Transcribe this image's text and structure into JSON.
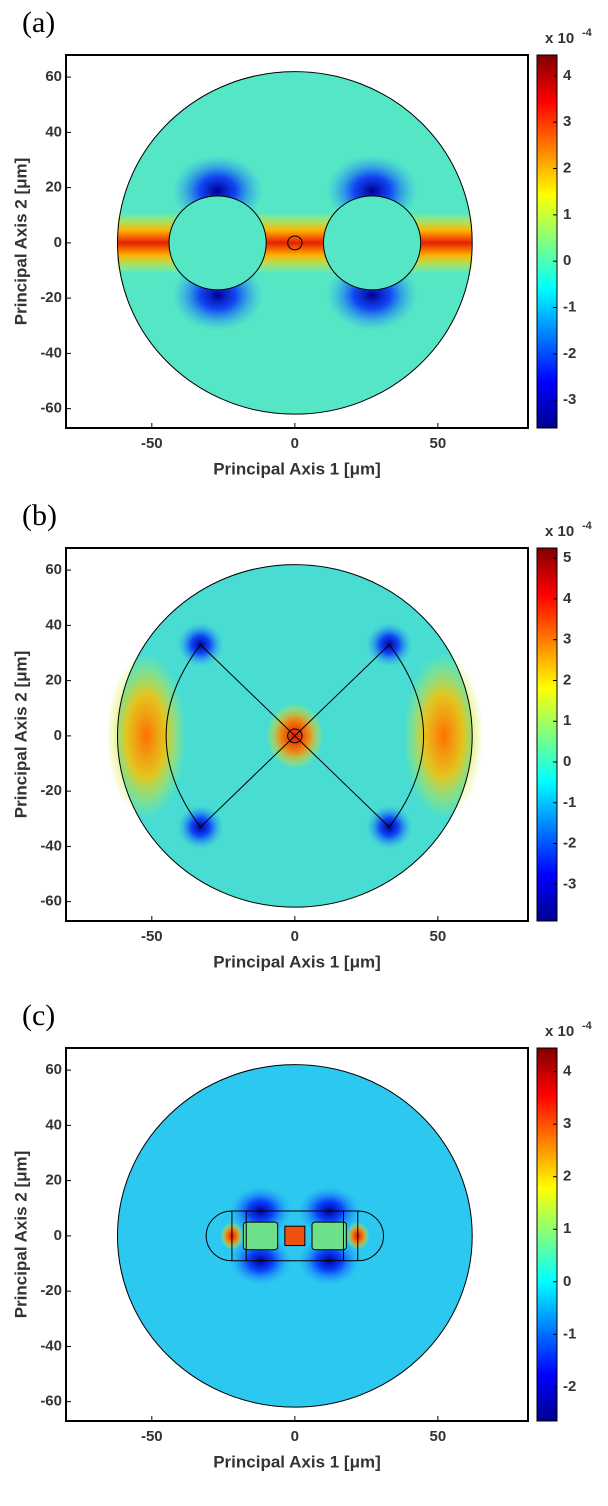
{
  "chart_data": [
    {
      "type": "heatmap",
      "panel_label": "(a)",
      "x_label": "Principal Axis 1 [μm]",
      "y_label": "Principal Axis 2 [μm]",
      "xlim": [
        -80,
        81.5
      ],
      "ylim": [
        -67,
        68
      ],
      "xticks": [
        -50,
        0,
        50
      ],
      "yticks": [
        60,
        40,
        20,
        0,
        -20,
        -40,
        -60
      ],
      "zlim": [
        -3.6,
        4.45
      ],
      "zticks": [
        4,
        3,
        2,
        1,
        0,
        -1,
        -2,
        -3
      ],
      "colorbar_label": "x 10",
      "colorbar_exponent": "-4"
    },
    {
      "type": "heatmap",
      "panel_label": "(b)",
      "x_label": "Principal Axis 1 [μm]",
      "y_label": "Principal Axis 2 [μm]",
      "xlim": [
        -80,
        81.5
      ],
      "ylim": [
        -67,
        68
      ],
      "xticks": [
        -50,
        0,
        50
      ],
      "yticks": [
        60,
        40,
        20,
        0,
        -20,
        -40,
        -60
      ],
      "zlim": [
        -3.9,
        5.25
      ],
      "zticks": [
        5,
        4,
        3,
        2,
        1,
        0,
        -1,
        -2,
        -3
      ],
      "colorbar_label": "x 10",
      "colorbar_exponent": "-4"
    },
    {
      "type": "heatmap",
      "panel_label": "(c)",
      "x_label": "Principal Axis 1 [μm]",
      "y_label": "Principal Axis 2 [μm]",
      "xlim": [
        -80,
        81.5
      ],
      "ylim": [
        -67,
        68
      ],
      "xticks": [
        -50,
        0,
        50
      ],
      "yticks": [
        60,
        40,
        20,
        0,
        -20,
        -40,
        -60
      ],
      "zlim": [
        -2.65,
        4.45
      ],
      "zticks": [
        4,
        3,
        2,
        1,
        0,
        -1,
        -2
      ],
      "colorbar_label": "x 10",
      "colorbar_exponent": "-4"
    }
  ]
}
